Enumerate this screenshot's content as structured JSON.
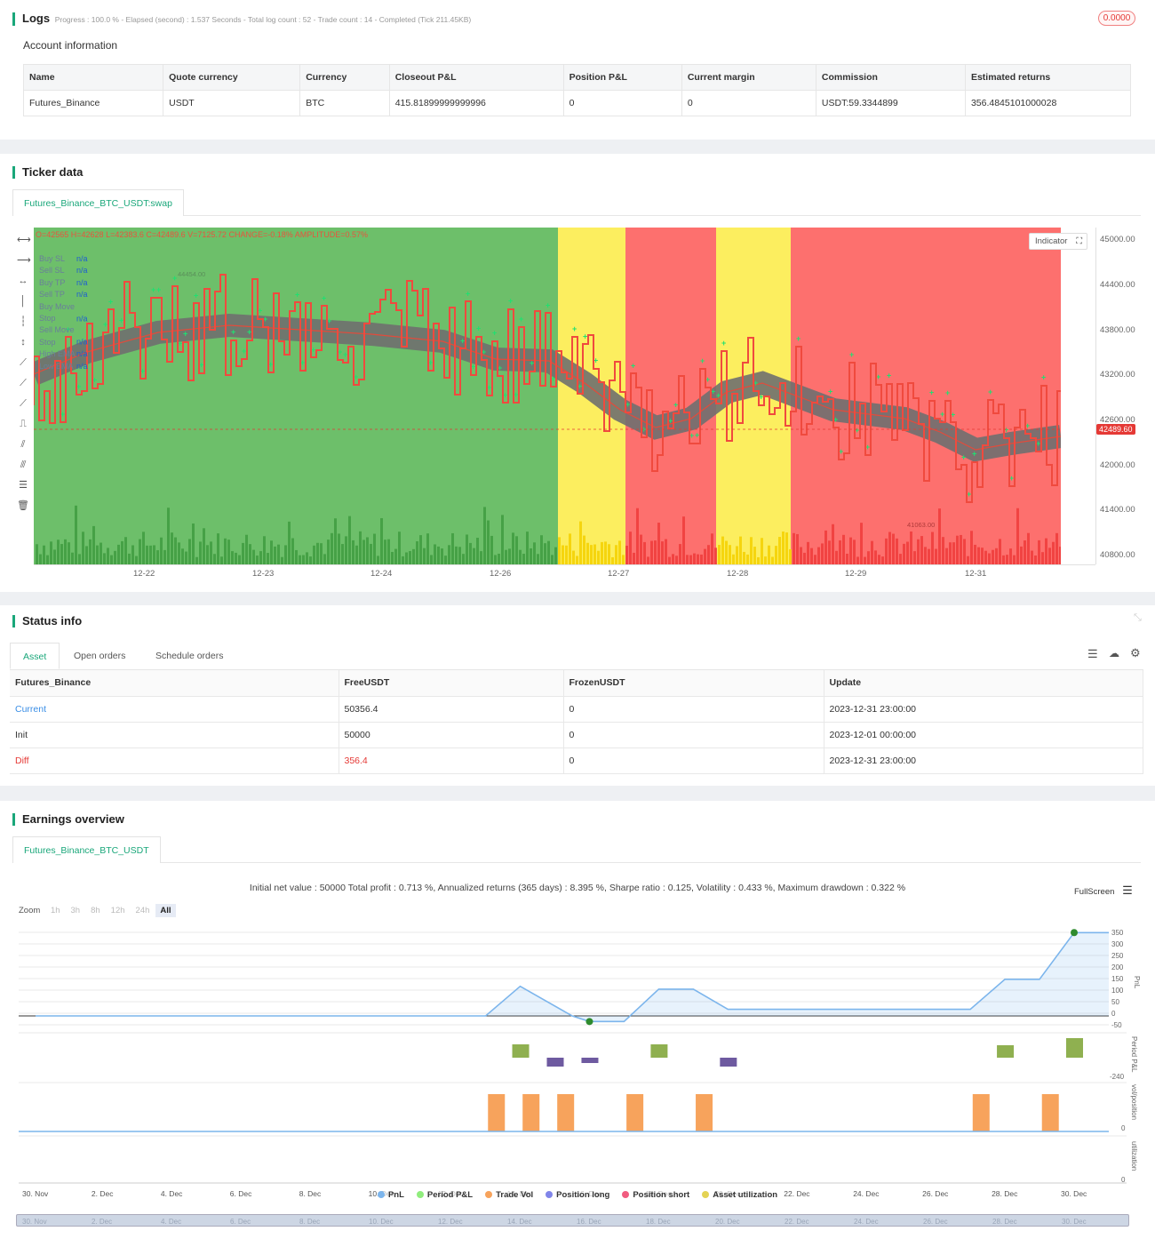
{
  "logs": {
    "title": "Logs",
    "status": "Progress : 100.0 % - Elapsed (second) : 1.537 Seconds - Total log count : 52 - Trade count : 14 - Completed (Tick 211.45KB)",
    "badge": "0.0000",
    "account_title": "Account information",
    "headers": [
      "Name",
      "Quote currency",
      "Currency",
      "Closeout P&L",
      "Position P&L",
      "Current margin",
      "Commission",
      "Estimated returns"
    ],
    "row": [
      "Futures_Binance",
      "USDT",
      "BTC",
      "415.81899999999996",
      "0",
      "0",
      "USDT:59.3344899",
      "356.4845101000028"
    ]
  },
  "ticker": {
    "title": "Ticker data",
    "tab": "Futures_Binance_BTC_USDT:swap",
    "ohlc": "O=42565 H=42628 L=42383.6 C=42489.6 V=7125.72 CHANGE=-0.18% AMPLITUDE=0.57%",
    "legend": [
      {
        "name": "Buy SL",
        "value": "n/a"
      },
      {
        "name": "Sell SL",
        "value": "n/a"
      },
      {
        "name": "Buy TP",
        "value": "n/a"
      },
      {
        "name": "Sell TP",
        "value": "n/a"
      },
      {
        "name": "Buy Move Stop",
        "value": "n/a"
      },
      {
        "name": "Sell Move Stop",
        "value": "n/a"
      },
      {
        "name": "High EMA",
        "value": "n/a"
      },
      {
        "name": "Low EMA",
        "value": "n/a"
      }
    ],
    "indicator_btn": "Indicator",
    "price_tag": "42489.60",
    "high_marker": "44454.00",
    "low_marker": "41063.00",
    "yaxis": [
      "45000.00",
      "44400.00",
      "43800.00",
      "43200.00",
      "42600.00",
      "42000.00",
      "41400.00",
      "40800.00"
    ],
    "xaxis": [
      "12-22",
      "12-23",
      "12-24",
      "12-26",
      "12-27",
      "12-28",
      "12-29",
      "12-31"
    ],
    "colors": {
      "green_zone": "#6dbf6a",
      "yellow_zone": "#fcee5f",
      "red_zone": "#fd706e",
      "ema_band": "#6f6f6f",
      "price_line": "#f04a3e",
      "buy_marker": "#20e070"
    }
  },
  "status": {
    "title": "Status info",
    "tabs": [
      "Asset",
      "Open orders",
      "Schedule orders"
    ],
    "headers": [
      "Futures_Binance",
      "FreeUSDT",
      "FrozenUSDT",
      "Update"
    ],
    "rows": [
      [
        "Current",
        "50356.4",
        "0",
        "2023-12-31 23:00:00"
      ],
      [
        "Init",
        "50000",
        "0",
        "2023-12-01 00:00:00"
      ],
      [
        "Diff",
        "356.4",
        "0",
        "2023-12-31 23:00:00"
      ]
    ]
  },
  "earnings": {
    "title": "Earnings overview",
    "tab": "Futures_Binance_BTC_USDT",
    "summary": "Initial net value : 50000 Total profit : 0.713 %, Annualized returns (365 days) : 8.395 %, Sharpe ratio : 0.125, Volatility : 0.433 %, Maximum drawdown : 0.322 %",
    "fullscreen": "FullScreen",
    "zoom_label": "Zoom",
    "zoom": [
      "1h",
      "3h",
      "8h",
      "12h",
      "24h",
      "All"
    ],
    "pnl_axis": [
      "350",
      "300",
      "250",
      "200",
      "150",
      "100",
      "50",
      "0",
      "-50"
    ],
    "pnl_label": "PnL",
    "period_label": "Period P&L",
    "period_axis": "-240",
    "vol_label": "vol/position",
    "vol_axis": "0",
    "util_label": "utilization",
    "util_axis": "0",
    "xaxis": [
      "30. Nov",
      "2. Dec",
      "4. Dec",
      "6. Dec",
      "8. Dec",
      "10. Dec",
      "12. Dec",
      "14. Dec",
      "16. Dec",
      "18. Dec",
      "20. Dec",
      "22. Dec",
      "24. Dec",
      "26. Dec",
      "28. Dec",
      "30. Dec"
    ],
    "legend": [
      {
        "name": "PnL",
        "color": "#7cb5ec"
      },
      {
        "name": "Period P&L",
        "color": "#90ed7d"
      },
      {
        "name": "Trade Vol",
        "color": "#f7a35c"
      },
      {
        "name": "Position long",
        "color": "#8085e9"
      },
      {
        "name": "Position short",
        "color": "#f15c80"
      },
      {
        "name": "Asset utilization",
        "color": "#e4d354"
      }
    ]
  }
}
